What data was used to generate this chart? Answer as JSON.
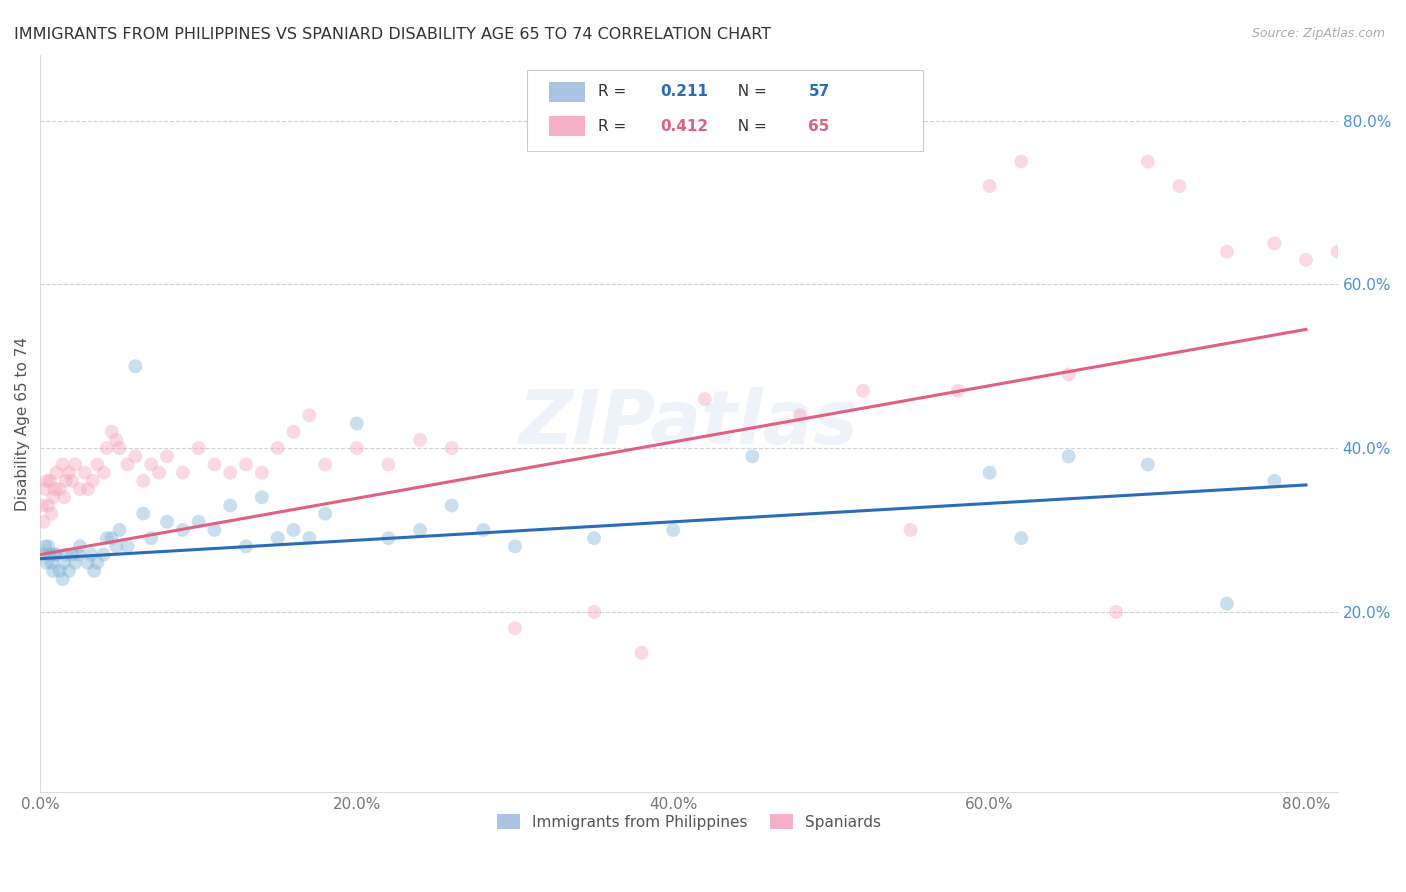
{
  "title": "IMMIGRANTS FROM PHILIPPINES VS SPANIARD DISABILITY AGE 65 TO 74 CORRELATION CHART",
  "source": "Source: ZipAtlas.com",
  "ylabel": "Disability Age 65 to 74",
  "xlim": [
    0.0,
    0.82
  ],
  "ylim": [
    -0.02,
    0.88
  ],
  "xtick_labels": [
    "0.0%",
    "20.0%",
    "40.0%",
    "60.0%",
    "80.0%"
  ],
  "xtick_vals": [
    0.0,
    0.2,
    0.4,
    0.6,
    0.8
  ],
  "ytick_labels": [
    "20.0%",
    "40.0%",
    "60.0%",
    "80.0%"
  ],
  "ytick_vals": [
    0.2,
    0.4,
    0.6,
    0.8
  ],
  "watermark": "ZIPatlas",
  "blue_r": "0.211",
  "blue_n": "57",
  "pink_r": "0.412",
  "pink_n": "65",
  "blue_scatter_x": [
    0.002,
    0.003,
    0.004,
    0.005,
    0.006,
    0.007,
    0.008,
    0.009,
    0.01,
    0.012,
    0.014,
    0.015,
    0.016,
    0.018,
    0.02,
    0.022,
    0.024,
    0.025,
    0.03,
    0.032,
    0.034,
    0.036,
    0.04,
    0.042,
    0.045,
    0.048,
    0.05,
    0.055,
    0.06,
    0.065,
    0.07,
    0.08,
    0.09,
    0.1,
    0.11,
    0.12,
    0.13,
    0.14,
    0.15,
    0.16,
    0.17,
    0.18,
    0.2,
    0.22,
    0.24,
    0.26,
    0.28,
    0.3,
    0.35,
    0.4,
    0.45,
    0.6,
    0.62,
    0.65,
    0.7,
    0.75,
    0.78
  ],
  "blue_scatter_y": [
    0.27,
    0.28,
    0.26,
    0.28,
    0.27,
    0.26,
    0.25,
    0.27,
    0.27,
    0.25,
    0.24,
    0.26,
    0.27,
    0.25,
    0.27,
    0.26,
    0.27,
    0.28,
    0.26,
    0.27,
    0.25,
    0.26,
    0.27,
    0.29,
    0.29,
    0.28,
    0.3,
    0.28,
    0.5,
    0.32,
    0.29,
    0.31,
    0.3,
    0.31,
    0.3,
    0.33,
    0.28,
    0.34,
    0.29,
    0.3,
    0.29,
    0.32,
    0.43,
    0.29,
    0.3,
    0.33,
    0.3,
    0.28,
    0.29,
    0.3,
    0.39,
    0.37,
    0.29,
    0.39,
    0.38,
    0.21,
    0.36
  ],
  "pink_scatter_x": [
    0.001,
    0.002,
    0.003,
    0.004,
    0.005,
    0.006,
    0.007,
    0.008,
    0.009,
    0.01,
    0.012,
    0.014,
    0.015,
    0.016,
    0.018,
    0.02,
    0.022,
    0.025,
    0.028,
    0.03,
    0.033,
    0.036,
    0.04,
    0.042,
    0.045,
    0.048,
    0.05,
    0.055,
    0.06,
    0.065,
    0.07,
    0.075,
    0.08,
    0.09,
    0.1,
    0.11,
    0.12,
    0.13,
    0.14,
    0.15,
    0.16,
    0.17,
    0.18,
    0.2,
    0.22,
    0.24,
    0.26,
    0.3,
    0.35,
    0.38,
    0.42,
    0.48,
    0.52,
    0.55,
    0.58,
    0.6,
    0.62,
    0.65,
    0.68,
    0.7,
    0.72,
    0.75,
    0.78,
    0.8,
    0.82
  ],
  "pink_scatter_y": [
    0.33,
    0.31,
    0.35,
    0.36,
    0.33,
    0.36,
    0.32,
    0.34,
    0.35,
    0.37,
    0.35,
    0.38,
    0.34,
    0.36,
    0.37,
    0.36,
    0.38,
    0.35,
    0.37,
    0.35,
    0.36,
    0.38,
    0.37,
    0.4,
    0.42,
    0.41,
    0.4,
    0.38,
    0.39,
    0.36,
    0.38,
    0.37,
    0.39,
    0.37,
    0.4,
    0.38,
    0.37,
    0.38,
    0.37,
    0.4,
    0.42,
    0.44,
    0.38,
    0.4,
    0.38,
    0.41,
    0.4,
    0.18,
    0.2,
    0.15,
    0.46,
    0.44,
    0.47,
    0.3,
    0.47,
    0.72,
    0.75,
    0.49,
    0.2,
    0.75,
    0.72,
    0.64,
    0.65,
    0.63,
    0.64
  ],
  "blue_line_x": [
    0.0,
    0.8
  ],
  "blue_line_y": [
    0.265,
    0.355
  ],
  "pink_line_x": [
    0.0,
    0.8
  ],
  "pink_line_y": [
    0.27,
    0.545
  ],
  "blue_color": "#7bafd4",
  "pink_color": "#f4a0b8",
  "blue_line_color": "#2b6cb8",
  "pink_line_color": "#e06080",
  "ytick_color": "#4a90d9",
  "marker_size": 100,
  "marker_alpha": 0.4
}
